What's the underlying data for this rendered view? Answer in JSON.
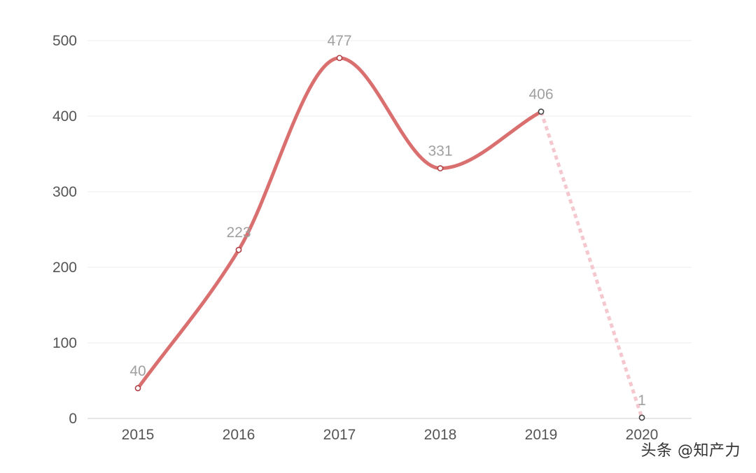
{
  "chart_data": {
    "type": "line",
    "categories": [
      "2015",
      "2016",
      "2017",
      "2018",
      "2019",
      "2020"
    ],
    "series": [
      {
        "values": [
          40,
          223,
          477,
          331,
          406,
          1
        ],
        "solid_until_index": 4
      }
    ],
    "ylim": [
      0,
      500
    ],
    "yticks": [
      0,
      100,
      200,
      300,
      400,
      500
    ],
    "ytick_labels": [
      "0",
      "100",
      "200",
      "300",
      "400",
      "500"
    ],
    "data_labels": [
      "40",
      "223",
      "477",
      "331",
      "406",
      "1"
    ],
    "grid": true,
    "title": "",
    "xlabel": "",
    "ylabel": ""
  },
  "colors": {
    "line": "#d9706f",
    "dashed_line": "#f4c8ce",
    "grid": "#eeeeee",
    "axis": "#dddddd",
    "marker_stroke_solid": "#b04048",
    "marker_stroke_dashed": "#444444",
    "marker_fill": "#ffffff"
  },
  "watermark": {
    "text": "头条 @知产力"
  }
}
